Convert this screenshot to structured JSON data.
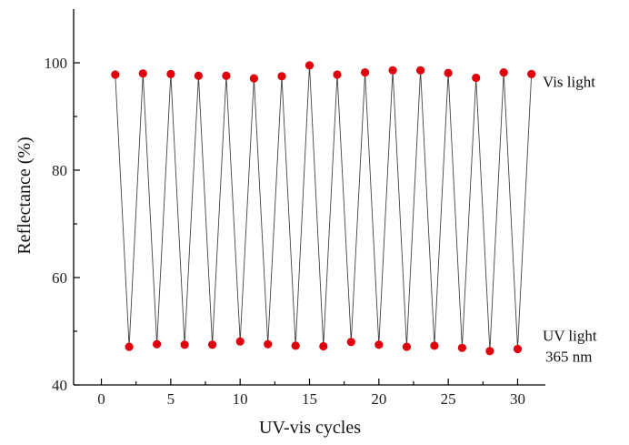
{
  "chart_data": {
    "type": "scatter",
    "xlabel": "UV-vis cycles",
    "ylabel": "Reflectance (%)",
    "xlim": [
      -2,
      32
    ],
    "ylim": [
      40,
      110
    ],
    "xticks": [
      0,
      5,
      10,
      15,
      20,
      25,
      30
    ],
    "yticks": [
      40,
      60,
      80,
      100
    ],
    "grid": false,
    "point_color": "#e0000b",
    "line_color": "#444444",
    "annotations": [
      {
        "text": "Vis light",
        "x": 31.8,
        "y": 95.5
      },
      {
        "text": "UV light",
        "x": 31.8,
        "y": 48.2
      },
      {
        "text": "365 nm",
        "x": 32.0,
        "y": 44.3
      }
    ],
    "series": [
      {
        "x": [
          1,
          2,
          3,
          4,
          5,
          6,
          7,
          8,
          9,
          10,
          11,
          12,
          13,
          14,
          15,
          16,
          17,
          18,
          19,
          20,
          21,
          22,
          23,
          24,
          25,
          26,
          27,
          28,
          29,
          30,
          31
        ],
        "y": [
          97.8,
          47.1,
          98.0,
          47.6,
          97.9,
          47.5,
          97.6,
          47.5,
          97.6,
          48.1,
          97.1,
          47.6,
          97.5,
          47.3,
          99.5,
          47.2,
          97.8,
          48.0,
          98.2,
          47.5,
          98.6,
          47.1,
          98.6,
          47.3,
          98.1,
          46.9,
          97.2,
          46.3,
          98.2,
          46.7,
          97.9
        ]
      }
    ]
  }
}
